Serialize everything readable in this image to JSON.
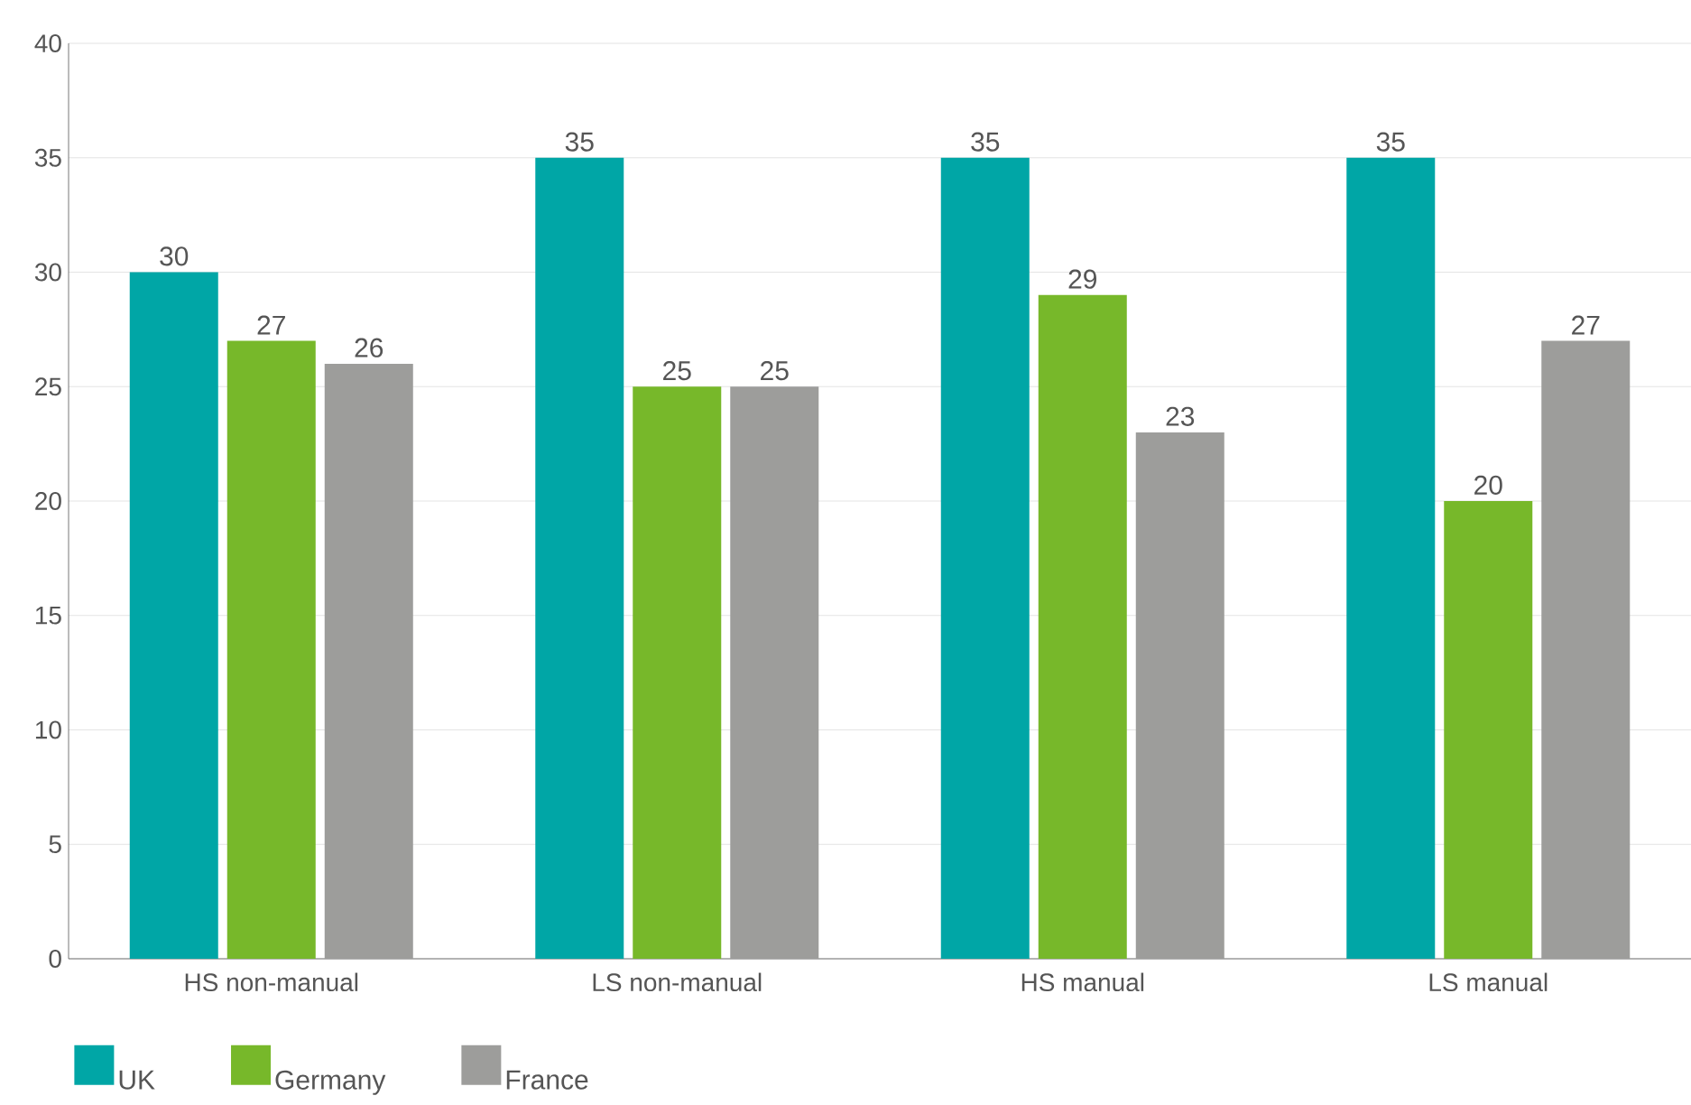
{
  "chart_data": {
    "type": "bar",
    "categories": [
      "HS non-manual",
      "LS non-manual",
      "HS manual",
      "LS manual"
    ],
    "series": [
      {
        "name": "UK",
        "color": "#00a6a6",
        "values": [
          30,
          35,
          35,
          35
        ]
      },
      {
        "name": "Germany",
        "color": "#77b82a",
        "values": [
          27,
          25,
          29,
          20
        ]
      },
      {
        "name": "France",
        "color": "#9d9d9b",
        "values": [
          26,
          25,
          23,
          27
        ]
      }
    ],
    "ylim": [
      0,
      40
    ],
    "yticks": [
      0,
      5,
      10,
      15,
      20,
      25,
      30,
      35,
      40
    ],
    "grid": "y",
    "legend": "bottom left",
    "data_labels": true
  }
}
